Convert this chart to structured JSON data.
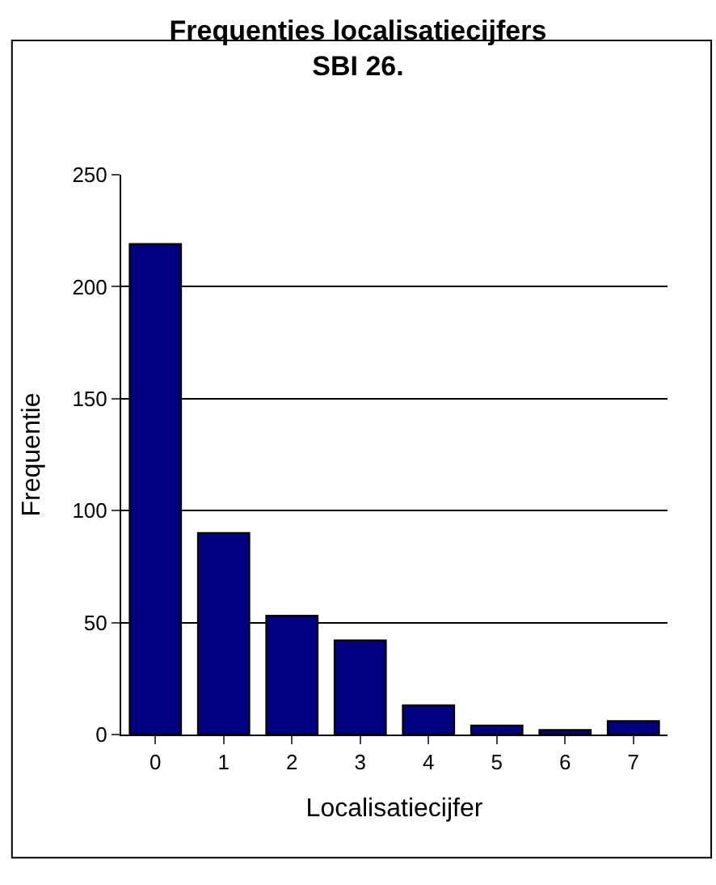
{
  "chart_data": {
    "type": "bar",
    "title": "Frequenties localisatiecijfers\nSBI 26.",
    "xlabel": "Localisatiecijfer",
    "ylabel": "Frequentie",
    "categories": [
      "0",
      "1",
      "2",
      "3",
      "4",
      "5",
      "6",
      "7"
    ],
    "values": [
      219,
      90,
      53,
      42,
      13,
      4,
      2,
      6
    ],
    "color": "#000080",
    "ylim": [
      0,
      250
    ],
    "yticks": [
      0,
      50,
      100,
      150,
      200,
      250
    ],
    "grid": "y",
    "legend": false
  }
}
